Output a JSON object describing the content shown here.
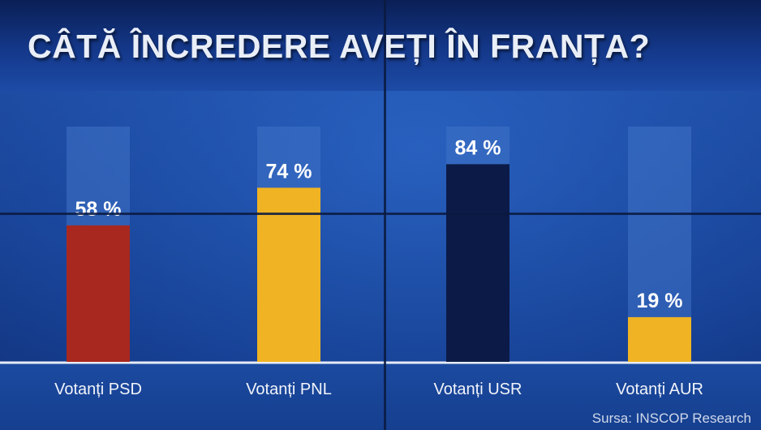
{
  "chart_data": {
    "type": "bar",
    "title": "CÂTĂ ÎNCREDERE AVEȚI ÎN FRANȚA?",
    "categories": [
      "Votanți PSD",
      "Votanți PNL",
      "Votanți USR",
      "Votanți AUR"
    ],
    "values": [
      58,
      74,
      84,
      19
    ],
    "value_labels": [
      "58 %",
      "74 %",
      "84 %",
      "19 %"
    ],
    "bar_colors": [
      "#a8281f",
      "#f0b323",
      "#0c1a47",
      "#f0b323"
    ],
    "track_color": "#3f73c6",
    "ylim": [
      0,
      100
    ],
    "grid": false,
    "legend": "none"
  },
  "source": "Sursa: INSCOP Research",
  "colors": {
    "background": "#1b4aa0",
    "title_text": "#e9eef7",
    "baseline": "#e6ecf7"
  }
}
